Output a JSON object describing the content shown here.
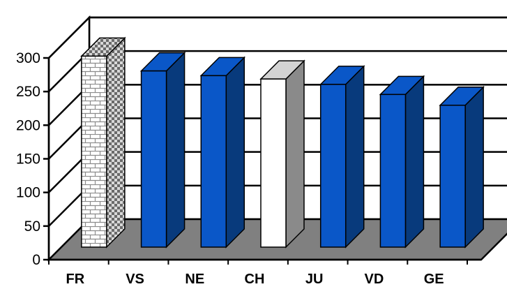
{
  "chart_data": {
    "type": "bar",
    "style": "3d-column",
    "categories": [
      "FR",
      "VS",
      "NE",
      "CH",
      "JU",
      "VD",
      "GE"
    ],
    "values": [
      284,
      262,
      255,
      250,
      242,
      227,
      211
    ],
    "ylim": [
      0,
      300
    ],
    "yticks": [
      0,
      50,
      100,
      150,
      200,
      250,
      300
    ],
    "grid": true,
    "legend": "none",
    "colors": {
      "bar_front": "#0a57c8",
      "bar_side": "#083a7c",
      "bar_top": "#0a57c8",
      "highlight_front": "#ffffff",
      "highlight_side": "#8a8a8a",
      "highlight_top": "#d3d3d3",
      "brick_mortar": "#ffffff",
      "brick_face": "#9a9a9a",
      "floor": "#808080",
      "gridline": "#000000"
    },
    "bar_styles": [
      "brick",
      "solid",
      "solid",
      "highlight",
      "solid",
      "solid",
      "solid"
    ]
  }
}
